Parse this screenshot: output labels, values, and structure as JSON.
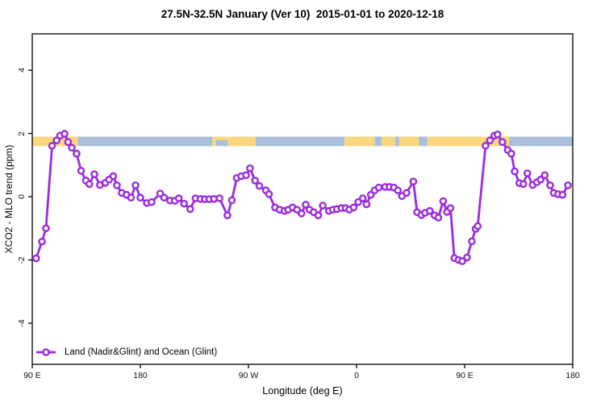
{
  "title": "27.5N-32.5N January (Ver 10)  2015-01-01 to 2020-12-18",
  "legend": {
    "label": "Land (Nadir&Glint) and Ocean (Glint)",
    "position": "bottom-left-inside"
  },
  "chart_data": {
    "type": "line",
    "title": "27.5N-32.5N January (Ver 10)  2015-01-01 to 2020-12-18",
    "xlabel": "Longitude (deg E)",
    "ylabel": "XCO2 - MLO trend (ppm)",
    "xlim": [
      90,
      540
    ],
    "ylim": [
      -5.3,
      5.15
    ],
    "grid": false,
    "xticks": [
      {
        "lon": 90,
        "label": "90 E"
      },
      {
        "lon": 180,
        "label": "180"
      },
      {
        "lon": 270,
        "label": "90 W"
      },
      {
        "lon": 360,
        "label": "0"
      },
      {
        "lon": 450,
        "label": "90 E"
      },
      {
        "lon": 540,
        "label": "180"
      }
    ],
    "yticks": [
      {
        "value": 4,
        "label": "4"
      },
      {
        "value": 2,
        "label": "2"
      },
      {
        "value": 0,
        "label": "0"
      },
      {
        "value": -2,
        "label": "-2"
      },
      {
        "value": -4,
        "label": "-4"
      }
    ],
    "series": [
      {
        "name": "Land (Nadir&Glint) and Ocean (Glint)",
        "color": "#9B2BDB",
        "marker": "open-circle",
        "points": [
          [
            93.2,
            -1.95
          ],
          [
            98.1,
            -1.42
          ],
          [
            101.4,
            -1.0
          ],
          [
            106.5,
            1.61
          ],
          [
            110.3,
            1.78
          ],
          [
            113.1,
            1.93
          ],
          [
            116.9,
            1.99
          ],
          [
            119.8,
            1.73
          ],
          [
            122.9,
            1.55
          ],
          [
            126.9,
            1.36
          ],
          [
            130.7,
            0.82
          ],
          [
            134.6,
            0.51
          ],
          [
            137.5,
            0.4
          ],
          [
            141.7,
            0.71
          ],
          [
            146.3,
            0.37
          ],
          [
            150.8,
            0.44
          ],
          [
            153.9,
            0.54
          ],
          [
            157.4,
            0.65
          ],
          [
            160.5,
            0.36
          ],
          [
            164.5,
            0.12
          ],
          [
            168.5,
            0.06
          ],
          [
            172.2,
            -0.03
          ],
          [
            176.0,
            0.36
          ],
          [
            180.0,
            -0.03
          ],
          [
            185.4,
            -0.2
          ],
          [
            189.4,
            -0.17
          ],
          [
            196.5,
            0.1
          ],
          [
            199.8,
            -0.03
          ],
          [
            204.7,
            -0.12
          ],
          [
            208.7,
            -0.13
          ],
          [
            212.0,
            -0.05
          ],
          [
            216.4,
            -0.22
          ],
          [
            221.5,
            -0.39
          ],
          [
            225.9,
            -0.05
          ],
          [
            230.1,
            -0.07
          ],
          [
            233.7,
            -0.08
          ],
          [
            237.4,
            -0.08
          ],
          [
            241.2,
            -0.07
          ],
          [
            245.9,
            -0.05
          ],
          [
            252.5,
            -0.59
          ],
          [
            256.2,
            -0.11
          ],
          [
            260.2,
            0.59
          ],
          [
            264.0,
            0.65
          ],
          [
            268.0,
            0.68
          ],
          [
            271.3,
            0.9
          ],
          [
            275.5,
            0.51
          ],
          [
            279.1,
            0.34
          ],
          [
            284.5,
            0.2
          ],
          [
            287.1,
            0.08
          ],
          [
            292.1,
            -0.34
          ],
          [
            296.0,
            -0.41
          ],
          [
            300.0,
            -0.45
          ],
          [
            303.1,
            -0.41
          ],
          [
            306.7,
            -0.34
          ],
          [
            310.4,
            -0.41
          ],
          [
            314.2,
            -0.53
          ],
          [
            317.7,
            -0.25
          ],
          [
            320.8,
            -0.41
          ],
          [
            324.3,
            -0.49
          ],
          [
            328.1,
            -0.59
          ],
          [
            331.9,
            -0.28
          ],
          [
            337.0,
            -0.45
          ],
          [
            340.3,
            -0.41
          ],
          [
            343.6,
            -0.39
          ],
          [
            347.4,
            -0.36
          ],
          [
            350.9,
            -0.36
          ],
          [
            354.0,
            -0.41
          ],
          [
            357.6,
            -0.34
          ],
          [
            361.4,
            -0.17
          ],
          [
            365.2,
            -0.05
          ],
          [
            368.3,
            -0.24
          ],
          [
            371.9,
            0.06
          ],
          [
            375.0,
            0.2
          ],
          [
            378.5,
            0.29
          ],
          [
            383.8,
            0.31
          ],
          [
            387.4,
            0.31
          ],
          [
            391.1,
            0.29
          ],
          [
            394.4,
            0.2
          ],
          [
            397.8,
            0.02
          ],
          [
            401.6,
            0.12
          ],
          [
            407.3,
            0.48
          ],
          [
            410.4,
            -0.49
          ],
          [
            414.0,
            -0.58
          ],
          [
            417.0,
            -0.51
          ],
          [
            421.0,
            -0.45
          ],
          [
            425.0,
            -0.59
          ],
          [
            428.1,
            -0.66
          ],
          [
            432.1,
            -0.14
          ],
          [
            435.3,
            -0.48
          ],
          [
            438.2,
            -0.36
          ],
          [
            441.4,
            -1.94
          ],
          [
            444.9,
            -2.0
          ],
          [
            448.0,
            -2.04
          ],
          [
            452.0,
            -1.92
          ],
          [
            456.0,
            -1.41
          ],
          [
            459.1,
            -1.02
          ],
          [
            460.9,
            -0.93
          ],
          [
            467.4,
            1.61
          ],
          [
            471.1,
            1.78
          ],
          [
            474.7,
            1.93
          ],
          [
            477.4,
            1.97
          ],
          [
            481.4,
            1.73
          ],
          [
            485.8,
            1.48
          ],
          [
            488.9,
            1.36
          ],
          [
            491.7,
            0.8
          ],
          [
            495.5,
            0.43
          ],
          [
            498.9,
            0.4
          ],
          [
            502.2,
            0.74
          ],
          [
            506.6,
            0.37
          ],
          [
            510.1,
            0.46
          ],
          [
            513.2,
            0.54
          ],
          [
            516.7,
            0.68
          ],
          [
            521.2,
            0.36
          ],
          [
            524.2,
            0.12
          ],
          [
            527.8,
            0.08
          ],
          [
            531.5,
            0.06
          ],
          [
            536.0,
            0.36
          ]
        ]
      }
    ],
    "map_strip": {
      "description": "land/ocean strip drawn across the plot near y=1.6 to 1.9 ppm",
      "y_range": [
        1.6,
        1.9
      ],
      "land_color": "#FAD77E",
      "ocean_color": "#A9BFDB",
      "segments": [
        {
          "from": 90,
          "to": 128,
          "type": "land"
        },
        {
          "from": 128,
          "to": 240,
          "type": "ocean"
        },
        {
          "from": 240,
          "to": 243,
          "type": "land"
        },
        {
          "from": 243,
          "to": 253,
          "type": "ocean",
          "partial": "lower"
        },
        {
          "from": 253,
          "to": 276,
          "type": "land"
        },
        {
          "from": 276,
          "to": 350,
          "type": "ocean"
        },
        {
          "from": 350,
          "to": 375,
          "type": "land"
        },
        {
          "from": 375,
          "to": 381,
          "type": "ocean"
        },
        {
          "from": 381,
          "to": 392,
          "type": "land"
        },
        {
          "from": 392,
          "to": 395.5,
          "type": "ocean"
        },
        {
          "from": 395.5,
          "to": 412,
          "type": "land"
        },
        {
          "from": 412,
          "to": 419,
          "type": "ocean"
        },
        {
          "from": 419,
          "to": 487,
          "type": "land"
        },
        {
          "from": 487,
          "to": 540,
          "type": "ocean"
        }
      ]
    }
  },
  "frame": {
    "axis_color": "#000000",
    "tick_label_color": "#111111"
  }
}
